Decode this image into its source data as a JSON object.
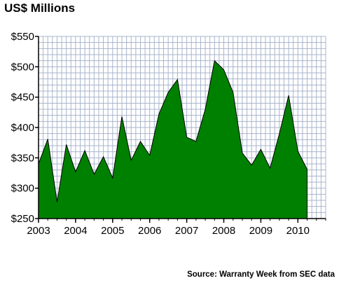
{
  "title": "US$ Millions",
  "source": "Source: Warranty Week from SEC data",
  "colors": {
    "area_fill": "#008000",
    "grid": "#a8b4cc",
    "axis": "#000000",
    "background": "#ffffff"
  },
  "chart_data": {
    "type": "area",
    "title": "US$ Millions",
    "xlabel": "",
    "ylabel": "",
    "ylim": [
      250,
      550
    ],
    "y_ticks": [
      "$250",
      "$300",
      "$350",
      "$400",
      "$450",
      "$500",
      "$550"
    ],
    "y_tick_values": [
      250,
      300,
      350,
      400,
      450,
      500,
      550
    ],
    "x_tick_labels": [
      "2003",
      "2004",
      "2005",
      "2006",
      "2007",
      "2008",
      "2009",
      "2010"
    ],
    "quarters_per_year": 4,
    "grid": true,
    "legend": "none",
    "series": [
      {
        "values": [
          340,
          381,
          277,
          372,
          327,
          362,
          323,
          352,
          317,
          418,
          346,
          377,
          354,
          422,
          458,
          479,
          384,
          377,
          430,
          510,
          495,
          458,
          358,
          338,
          364,
          333,
          390,
          453,
          361,
          331
        ]
      }
    ]
  }
}
